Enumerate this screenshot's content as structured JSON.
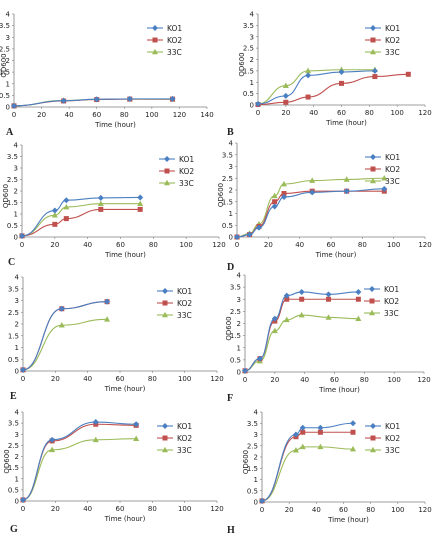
{
  "figure": {
    "colors": {
      "KO1": "#4a7fc1",
      "KO2": "#c0504d",
      "33C": "#9bbb59"
    }
  },
  "chart_data": [
    {
      "id": "A",
      "panel_letter": "A",
      "type": "line",
      "xlabel": "Time (hour)",
      "ylabel": "OD600",
      "xlim": [
        0,
        140
      ],
      "ylim": [
        0,
        4
      ],
      "xticks": [
        0,
        20,
        40,
        60,
        80,
        100,
        120,
        140
      ],
      "yticks": [
        0,
        0.5,
        1,
        1.5,
        2,
        2.5,
        3,
        3.5,
        4
      ],
      "legend": [
        "KO1",
        "KO2",
        "33C"
      ],
      "legend_position": "top-right",
      "series": [
        {
          "name": "KO1",
          "x": [
            0,
            36,
            60,
            84,
            115
          ],
          "y": [
            0.05,
            0.27,
            0.33,
            0.35,
            0.35
          ]
        },
        {
          "name": "KO2",
          "x": [
            0,
            36,
            60,
            84,
            115
          ],
          "y": [
            0.05,
            0.26,
            0.32,
            0.34,
            0.34
          ]
        },
        {
          "name": "33C",
          "x": [
            0,
            36,
            60,
            84,
            115
          ],
          "y": [
            0.05,
            0.28,
            0.33,
            0.34,
            0.33
          ]
        }
      ]
    },
    {
      "id": "B",
      "panel_letter": "B",
      "type": "line",
      "xlabel": "Time (hour)",
      "ylabel": "OD600",
      "xlim": [
        0,
        120
      ],
      "ylim": [
        0,
        4
      ],
      "xticks": [
        0,
        20,
        40,
        60,
        80,
        100,
        120
      ],
      "yticks": [
        0,
        0.5,
        1,
        1.5,
        2,
        2.5,
        3,
        3.5,
        4
      ],
      "legend": [
        "KO1",
        "KO2",
        "33C"
      ],
      "legend_position": "top-right",
      "series": [
        {
          "name": "KO1",
          "x": [
            0,
            20,
            36,
            60,
            84
          ],
          "y": [
            0.05,
            0.4,
            1.3,
            1.45,
            1.5
          ]
        },
        {
          "name": "KO2",
          "x": [
            0,
            20,
            36,
            60,
            84,
            108
          ],
          "y": [
            0.02,
            0.12,
            0.35,
            0.95,
            1.25,
            1.35
          ]
        },
        {
          "name": "33C",
          "x": [
            0,
            20,
            36,
            60,
            84
          ],
          "y": [
            0.05,
            0.85,
            1.5,
            1.55,
            1.55
          ]
        }
      ]
    },
    {
      "id": "C",
      "panel_letter": "C",
      "type": "line",
      "xlabel": "Time (hour)",
      "ylabel": "OD600",
      "xlim": [
        0,
        120
      ],
      "ylim": [
        0,
        4
      ],
      "xticks": [
        0,
        20,
        40,
        60,
        80,
        100,
        120
      ],
      "yticks": [
        0,
        0.5,
        1,
        1.5,
        2,
        2.5,
        3,
        3.5,
        4
      ],
      "legend": [
        "KO1",
        "KO2",
        "33C"
      ],
      "legend_position": "top-right",
      "series": [
        {
          "name": "KO1",
          "x": [
            0,
            20,
            27,
            48,
            72
          ],
          "y": [
            0.05,
            1.15,
            1.6,
            1.7,
            1.72
          ]
        },
        {
          "name": "KO2",
          "x": [
            0,
            20,
            27,
            48,
            72
          ],
          "y": [
            0.05,
            0.55,
            0.8,
            1.2,
            1.2
          ]
        },
        {
          "name": "33C",
          "x": [
            0,
            20,
            27,
            48,
            72
          ],
          "y": [
            0.05,
            0.95,
            1.3,
            1.45,
            1.45
          ]
        }
      ]
    },
    {
      "id": "D",
      "panel_letter": "D",
      "type": "line",
      "xlabel": "Time (hour)",
      "ylabel": "OD600",
      "xlim": [
        0,
        120
      ],
      "ylim": [
        0,
        4
      ],
      "xticks": [
        0,
        20,
        40,
        60,
        80,
        100,
        120
      ],
      "yticks": [
        0,
        0.5,
        1,
        1.5,
        2,
        2.5,
        3,
        3.5,
        4
      ],
      "legend": [
        "KO1",
        "KO2",
        "33C"
      ],
      "legend_position": "top-right",
      "series": [
        {
          "name": "KO1",
          "x": [
            0,
            8,
            14,
            24,
            30,
            48,
            70,
            94
          ],
          "y": [
            0.0,
            0.1,
            0.4,
            1.3,
            1.7,
            1.9,
            1.95,
            2.05
          ]
        },
        {
          "name": "KO2",
          "x": [
            0,
            8,
            14,
            24,
            30,
            48,
            70,
            94
          ],
          "y": [
            0.0,
            0.1,
            0.45,
            1.5,
            1.85,
            1.95,
            1.95,
            1.95
          ]
        },
        {
          "name": "33C",
          "x": [
            0,
            8,
            14,
            24,
            30,
            48,
            70,
            94
          ],
          "y": [
            0.0,
            0.15,
            0.55,
            1.75,
            2.25,
            2.4,
            2.45,
            2.5
          ]
        }
      ]
    },
    {
      "id": "E",
      "panel_letter": "E",
      "type": "line",
      "xlabel": "Time (hour)",
      "ylabel": "",
      "xlim": [
        0,
        120
      ],
      "ylim": [
        0,
        4
      ],
      "xticks": [
        0,
        20,
        40,
        60,
        80,
        100,
        120
      ],
      "yticks": [
        0,
        0.5,
        1,
        1.5,
        2,
        2.5,
        3,
        3.5,
        4
      ],
      "legend": [
        "KO1",
        "KO2",
        "33C"
      ],
      "legend_position": "top-right",
      "series": [
        {
          "name": "KO1",
          "x": [
            0,
            24,
            52
          ],
          "y": [
            0.05,
            2.65,
            2.95
          ]
        },
        {
          "name": "KO2",
          "x": [
            0,
            24,
            52
          ],
          "y": [
            0.05,
            2.65,
            2.95
          ]
        },
        {
          "name": "33C",
          "x": [
            0,
            24,
            52
          ],
          "y": [
            0.05,
            1.95,
            2.2
          ]
        }
      ]
    },
    {
      "id": "F",
      "panel_letter": "F",
      "type": "line",
      "xlabel": "Time (hour)",
      "ylabel": "OD600",
      "xlim": [
        0,
        120
      ],
      "ylim": [
        0,
        4
      ],
      "xticks": [
        0,
        20,
        40,
        60,
        80,
        100,
        120
      ],
      "yticks": [
        0,
        0.5,
        1,
        1.5,
        2,
        2.5,
        3,
        3.5,
        4
      ],
      "legend": [
        "KO1",
        "KO2",
        "33C"
      ],
      "legend_position": "top-right",
      "series": [
        {
          "name": "KO1",
          "x": [
            0,
            10,
            20,
            28,
            38,
            56,
            76
          ],
          "y": [
            0.05,
            0.55,
            2.2,
            3.15,
            3.3,
            3.2,
            3.3
          ]
        },
        {
          "name": "KO2",
          "x": [
            0,
            10,
            20,
            28,
            38,
            56,
            76
          ],
          "y": [
            0.05,
            0.55,
            2.1,
            3.0,
            3.0,
            3.0,
            3.0
          ]
        },
        {
          "name": "33C",
          "x": [
            0,
            10,
            20,
            28,
            38,
            56,
            76
          ],
          "y": [
            0.05,
            0.45,
            1.7,
            2.15,
            2.35,
            2.25,
            2.2
          ]
        }
      ]
    },
    {
      "id": "G",
      "panel_letter": "G",
      "type": "line",
      "xlabel": "Time (hour)",
      "ylabel": "OD600",
      "xlim": [
        0,
        120
      ],
      "ylim": [
        0,
        4
      ],
      "xticks": [
        0,
        20,
        40,
        60,
        80,
        100,
        120
      ],
      "yticks": [
        0,
        0.5,
        1,
        1.5,
        2,
        2.5,
        3,
        3.5,
        4
      ],
      "legend": [
        "KO1",
        "KO2",
        "33C"
      ],
      "legend_position": "top-right",
      "series": [
        {
          "name": "KO1",
          "x": [
            0,
            18,
            45,
            70
          ],
          "y": [
            0.05,
            2.75,
            3.55,
            3.45
          ]
        },
        {
          "name": "KO2",
          "x": [
            0,
            18,
            45,
            70
          ],
          "y": [
            0.05,
            2.7,
            3.45,
            3.4
          ]
        },
        {
          "name": "33C",
          "x": [
            0,
            18,
            45,
            70
          ],
          "y": [
            0.05,
            2.3,
            2.75,
            2.8
          ]
        }
      ]
    },
    {
      "id": "H",
      "panel_letter": "H",
      "type": "line",
      "xlabel": "Time (hour)",
      "ylabel": "OD600",
      "xlim": [
        0,
        120
      ],
      "ylim": [
        0,
        4
      ],
      "xticks": [
        0,
        20,
        40,
        60,
        80,
        100,
        120
      ],
      "yticks": [
        0,
        0.5,
        1,
        1.5,
        2,
        2.5,
        3,
        3.5,
        4
      ],
      "legend": [
        "KO1",
        "KO2",
        "33C"
      ],
      "legend_position": "top-right",
      "series": [
        {
          "name": "KO1",
          "x": [
            0,
            25,
            30,
            43,
            67
          ],
          "y": [
            0.05,
            3.0,
            3.3,
            3.3,
            3.5
          ]
        },
        {
          "name": "KO2",
          "x": [
            0,
            25,
            30,
            43,
            67
          ],
          "y": [
            0.05,
            2.9,
            3.1,
            3.1,
            3.1
          ]
        },
        {
          "name": "33C",
          "x": [
            0,
            25,
            30,
            43,
            67
          ],
          "y": [
            0.05,
            2.3,
            2.45,
            2.45,
            2.35
          ]
        }
      ]
    }
  ]
}
